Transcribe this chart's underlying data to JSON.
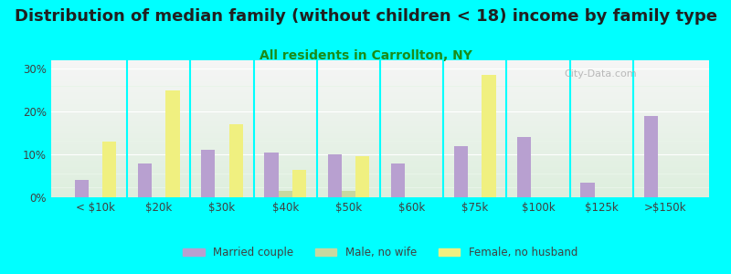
{
  "title": "Distribution of median family (without children < 18) income by family type",
  "subtitle": "All residents in Carrollton, NY",
  "categories": [
    "< $10k",
    "$20k",
    "$30k",
    "$40k",
    "$50k",
    "$60k",
    "$75k",
    "$100k",
    "$125k",
    ">$150k"
  ],
  "married_couple": [
    4,
    8,
    11,
    10.5,
    10,
    8,
    12,
    14,
    3.5,
    19
  ],
  "male_no_wife": [
    0,
    0,
    0,
    1.5,
    1.5,
    0,
    0,
    0,
    0,
    0
  ],
  "female_no_husband": [
    13,
    25,
    17,
    6.5,
    9.5,
    0,
    28.5,
    0,
    0,
    0
  ],
  "married_color": "#b8a0d0",
  "male_color": "#c8d8a0",
  "female_color": "#f0f080",
  "bg_color": "#00ffff",
  "plot_bg_top": "#f0f0f0",
  "plot_bg_bottom": "#d8ecd8",
  "ylim": [
    0,
    32
  ],
  "yticks": [
    0,
    10,
    20,
    30
  ],
  "title_fontsize": 13,
  "subtitle_fontsize": 10,
  "watermark": "City-Data.com"
}
